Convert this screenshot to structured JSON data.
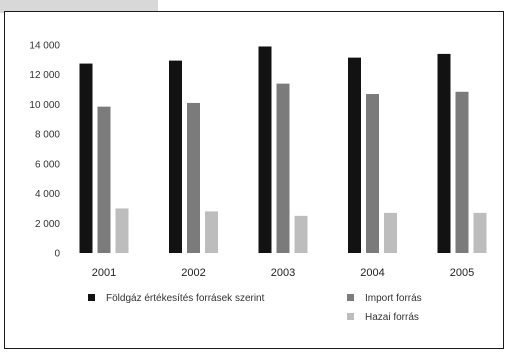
{
  "chart_data": {
    "type": "bar",
    "categories": [
      "2001",
      "2002",
      "2003",
      "2004",
      "2005"
    ],
    "series": [
      {
        "name": "Földgáz értékesítés forrásek szerint",
        "values": [
          12750,
          12950,
          13900,
          13150,
          13400
        ],
        "color": "#121212"
      },
      {
        "name": "Import forrás",
        "values": [
          9850,
          10100,
          11400,
          10700,
          10850
        ],
        "color": "#7b7b7b"
      },
      {
        "name": "Hazai forrás",
        "values": [
          3000,
          2800,
          2500,
          2700,
          2700
        ],
        "color": "#bdbdbd"
      }
    ],
    "yticks": [
      "14 000",
      "12 000",
      "10 000",
      "8 000",
      "6 000",
      "4 000",
      "2 000",
      "0"
    ],
    "ylim": [
      0,
      14000
    ],
    "grid": false,
    "legend_position": "bottom"
  }
}
